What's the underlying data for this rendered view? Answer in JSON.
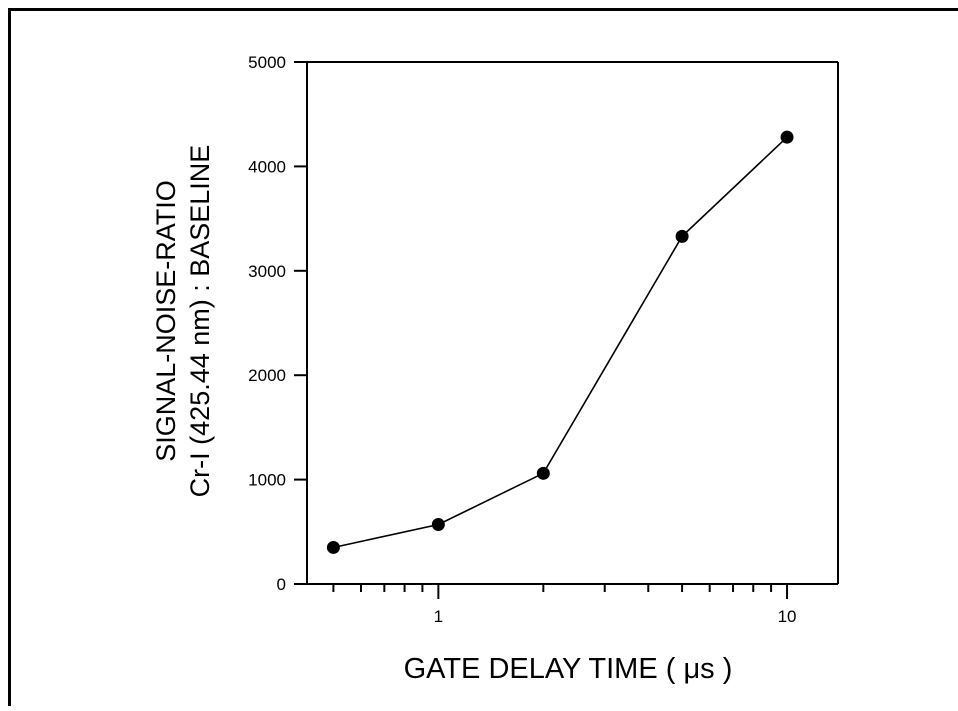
{
  "chart_data": {
    "type": "line",
    "x_scale": "log",
    "xlabel": "GATE DELAY TIME ( μs )",
    "ylabel_lines": [
      "SIGNAL-NOISE-RATIO",
      "Cr-I (425.44 nm) : BASELINE"
    ],
    "xlim": [
      0.42,
      14
    ],
    "ylim": [
      0,
      5000
    ],
    "x_ticks_major": [
      1,
      10
    ],
    "x_tick_labels": [
      "1",
      "10"
    ],
    "y_ticks": [
      0,
      1000,
      2000,
      3000,
      4000,
      5000
    ],
    "y_tick_labels": [
      "0",
      "1000",
      "2000",
      "3000",
      "4000",
      "5000"
    ],
    "grid": false,
    "legend": "none",
    "series": [
      {
        "x": [
          0.5,
          1,
          2,
          5,
          10
        ],
        "y": [
          350,
          570,
          1060,
          3330,
          4280
        ],
        "marker": "filled-circle",
        "color": "#000000"
      }
    ]
  }
}
